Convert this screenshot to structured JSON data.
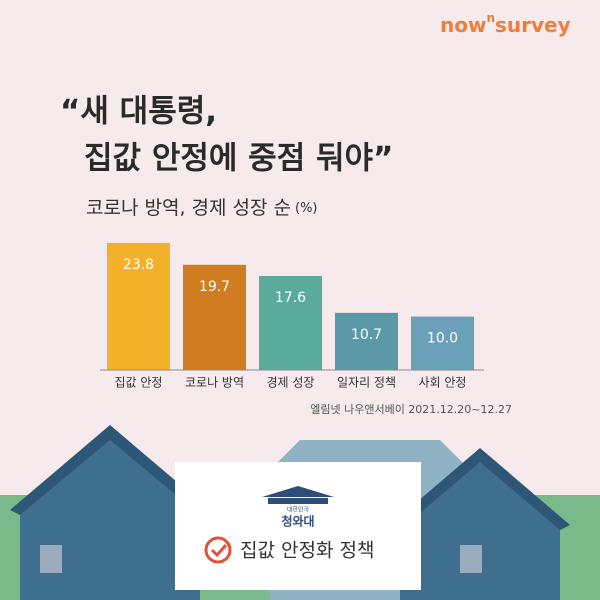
{
  "brand": [
    "now",
    "n",
    "survey"
  ],
  "chart_data": {
    "type": "bar",
    "title": [
      "“새 대통령,",
      "집값 안정에 중점 둬야”"
    ],
    "subtitle": "코로나 방역, 경제 성장 순",
    "unit": "(%)",
    "categories": [
      "집값 안정",
      "코로나 방역",
      "경제 성장",
      "일자리 정책",
      "사회 안정"
    ],
    "values": [
      23.8,
      19.7,
      17.6,
      10.7,
      10.0
    ],
    "value_labels": [
      "23.8",
      "19.7",
      "17.6",
      "10.7",
      "10.0"
    ],
    "colors": [
      "#f3b12a",
      "#d07d22",
      "#5aab9a",
      "#5b98a8",
      "#6aa0b8"
    ],
    "source": "엘림넷 나우앤서베이 2021.12.20~12.27"
  },
  "card": {
    "country": "대한민국",
    "office": "청와대",
    "policy": "집값 안정화 정책"
  }
}
